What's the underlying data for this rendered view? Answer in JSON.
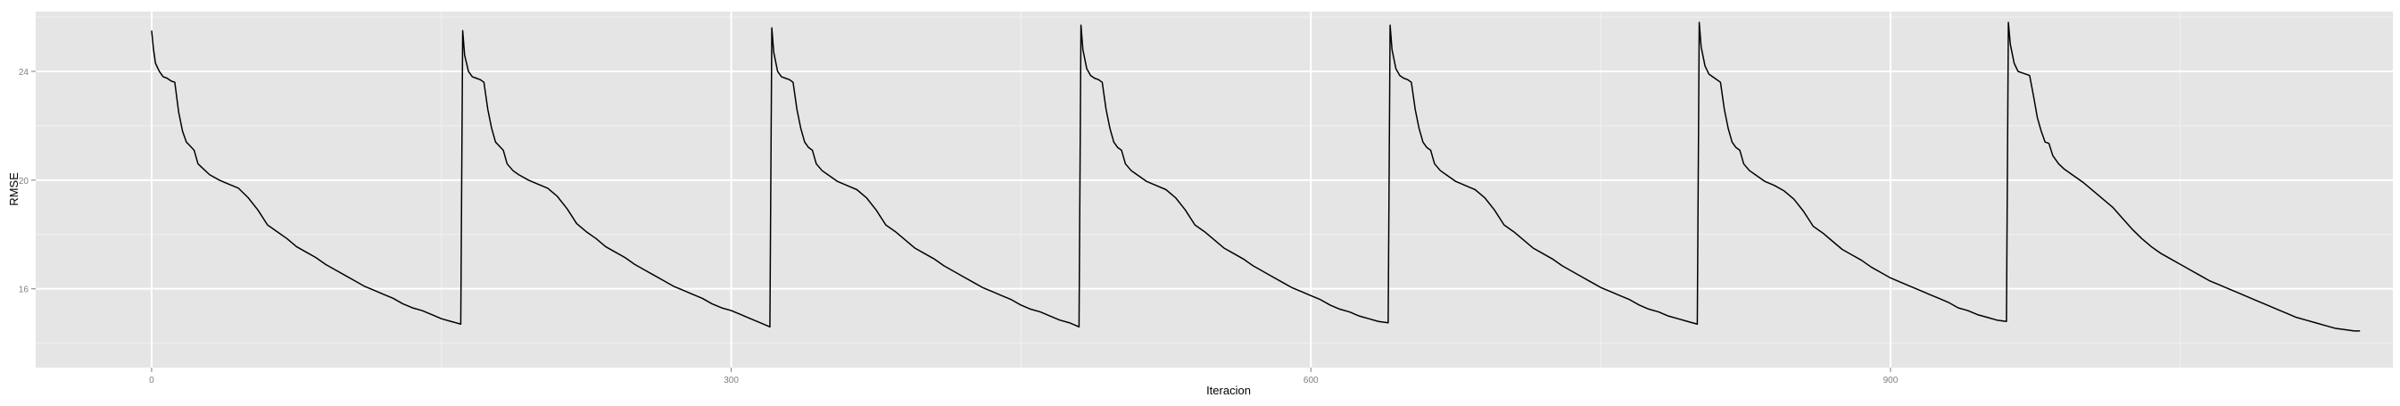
{
  "chart_data": {
    "type": "line",
    "title": "",
    "xlabel": "Iteracion",
    "ylabel": "RMSE",
    "xlim": [
      -60,
      1160
    ],
    "ylim": [
      13.1,
      26.2
    ],
    "xticks": [
      0,
      300,
      600,
      900
    ],
    "yticks": [
      16,
      20,
      24
    ],
    "minor_xticks": [
      150,
      450,
      750,
      1050
    ],
    "minor_yticks": [
      14,
      18,
      22,
      26
    ],
    "grid": true,
    "background": "#E5E5E5",
    "grid_color": "#FFFFFF",
    "line_color": "#000000",
    "restart_peaks": [
      25.5,
      25.5,
      25.6,
      25.7,
      25.7,
      25.8,
      25.8
    ],
    "series": [
      {
        "values": [
          [
            0,
            25.5
          ],
          [
            1,
            24.8
          ],
          [
            2,
            24.3
          ],
          [
            4,
            24.0
          ],
          [
            6,
            23.8
          ],
          [
            8,
            23.75
          ],
          [
            10,
            23.65
          ],
          [
            12,
            23.6
          ],
          [
            14,
            22.5
          ],
          [
            16,
            21.8
          ],
          [
            18,
            21.4
          ],
          [
            20,
            21.25
          ],
          [
            22,
            21.1
          ],
          [
            24,
            20.6
          ],
          [
            27,
            20.4
          ],
          [
            30,
            20.2
          ],
          [
            35,
            20.0
          ],
          [
            40,
            19.85
          ],
          [
            45,
            19.7
          ],
          [
            50,
            19.35
          ],
          [
            55,
            18.9
          ],
          [
            60,
            18.35
          ],
          [
            65,
            18.1
          ],
          [
            70,
            17.85
          ],
          [
            75,
            17.55
          ],
          [
            80,
            17.35
          ],
          [
            85,
            17.15
          ],
          [
            90,
            16.9
          ],
          [
            95,
            16.7
          ],
          [
            100,
            16.5
          ],
          [
            105,
            16.3
          ],
          [
            110,
            16.1
          ],
          [
            115,
            15.95
          ],
          [
            120,
            15.8
          ],
          [
            125,
            15.65
          ],
          [
            130,
            15.45
          ],
          [
            135,
            15.3
          ],
          [
            140,
            15.2
          ],
          [
            145,
            15.05
          ],
          [
            150,
            14.9
          ],
          [
            155,
            14.8
          ],
          [
            160,
            14.7
          ],
          [
            161,
            25.5
          ],
          [
            162,
            24.6
          ],
          [
            164,
            24.0
          ],
          [
            166,
            23.8
          ],
          [
            168,
            23.75
          ],
          [
            170,
            23.7
          ],
          [
            172,
            23.6
          ],
          [
            174,
            22.6
          ],
          [
            176,
            21.9
          ],
          [
            178,
            21.4
          ],
          [
            180,
            21.25
          ],
          [
            182,
            21.1
          ],
          [
            184,
            20.6
          ],
          [
            187,
            20.35
          ],
          [
            190,
            20.2
          ],
          [
            195,
            20.0
          ],
          [
            200,
            19.85
          ],
          [
            205,
            19.7
          ],
          [
            210,
            19.4
          ],
          [
            215,
            18.95
          ],
          [
            220,
            18.4
          ],
          [
            225,
            18.1
          ],
          [
            230,
            17.85
          ],
          [
            235,
            17.55
          ],
          [
            240,
            17.35
          ],
          [
            245,
            17.15
          ],
          [
            250,
            16.9
          ],
          [
            255,
            16.7
          ],
          [
            260,
            16.5
          ],
          [
            265,
            16.3
          ],
          [
            270,
            16.1
          ],
          [
            275,
            15.95
          ],
          [
            280,
            15.8
          ],
          [
            285,
            15.65
          ],
          [
            290,
            15.45
          ],
          [
            295,
            15.3
          ],
          [
            300,
            15.2
          ],
          [
            305,
            15.05
          ],
          [
            310,
            14.9
          ],
          [
            315,
            14.75
          ],
          [
            320,
            14.6
          ],
          [
            321,
            25.6
          ],
          [
            322,
            24.7
          ],
          [
            324,
            24.0
          ],
          [
            326,
            23.8
          ],
          [
            328,
            23.75
          ],
          [
            330,
            23.7
          ],
          [
            332,
            23.6
          ],
          [
            334,
            22.6
          ],
          [
            336,
            21.9
          ],
          [
            338,
            21.4
          ],
          [
            340,
            21.2
          ],
          [
            342,
            21.1
          ],
          [
            344,
            20.6
          ],
          [
            347,
            20.35
          ],
          [
            350,
            20.2
          ],
          [
            355,
            19.95
          ],
          [
            360,
            19.8
          ],
          [
            365,
            19.65
          ],
          [
            370,
            19.35
          ],
          [
            375,
            18.9
          ],
          [
            380,
            18.35
          ],
          [
            385,
            18.1
          ],
          [
            390,
            17.8
          ],
          [
            395,
            17.5
          ],
          [
            400,
            17.3
          ],
          [
            405,
            17.1
          ],
          [
            410,
            16.85
          ],
          [
            415,
            16.65
          ],
          [
            420,
            16.45
          ],
          [
            425,
            16.25
          ],
          [
            430,
            16.05
          ],
          [
            435,
            15.9
          ],
          [
            440,
            15.75
          ],
          [
            445,
            15.6
          ],
          [
            450,
            15.4
          ],
          [
            455,
            15.25
          ],
          [
            460,
            15.15
          ],
          [
            465,
            15.0
          ],
          [
            470,
            14.85
          ],
          [
            475,
            14.75
          ],
          [
            480,
            14.6
          ],
          [
            481,
            25.7
          ],
          [
            482,
            24.8
          ],
          [
            484,
            24.1
          ],
          [
            486,
            23.85
          ],
          [
            488,
            23.75
          ],
          [
            490,
            23.7
          ],
          [
            492,
            23.6
          ],
          [
            494,
            22.6
          ],
          [
            496,
            21.9
          ],
          [
            498,
            21.4
          ],
          [
            500,
            21.2
          ],
          [
            502,
            21.1
          ],
          [
            504,
            20.6
          ],
          [
            507,
            20.35
          ],
          [
            510,
            20.2
          ],
          [
            515,
            19.95
          ],
          [
            520,
            19.8
          ],
          [
            525,
            19.65
          ],
          [
            530,
            19.35
          ],
          [
            535,
            18.9
          ],
          [
            540,
            18.35
          ],
          [
            545,
            18.1
          ],
          [
            550,
            17.8
          ],
          [
            555,
            17.5
          ],
          [
            560,
            17.3
          ],
          [
            565,
            17.1
          ],
          [
            570,
            16.85
          ],
          [
            575,
            16.65
          ],
          [
            580,
            16.45
          ],
          [
            585,
            16.25
          ],
          [
            590,
            16.05
          ],
          [
            595,
            15.9
          ],
          [
            600,
            15.75
          ],
          [
            605,
            15.6
          ],
          [
            610,
            15.4
          ],
          [
            615,
            15.25
          ],
          [
            620,
            15.15
          ],
          [
            625,
            15.0
          ],
          [
            630,
            14.9
          ],
          [
            635,
            14.8
          ],
          [
            640,
            14.75
          ],
          [
            641,
            25.7
          ],
          [
            642,
            24.8
          ],
          [
            644,
            24.1
          ],
          [
            646,
            23.85
          ],
          [
            648,
            23.75
          ],
          [
            650,
            23.7
          ],
          [
            652,
            23.6
          ],
          [
            654,
            22.6
          ],
          [
            656,
            21.9
          ],
          [
            658,
            21.4
          ],
          [
            660,
            21.2
          ],
          [
            662,
            21.1
          ],
          [
            664,
            20.6
          ],
          [
            667,
            20.35
          ],
          [
            670,
            20.2
          ],
          [
            675,
            19.95
          ],
          [
            680,
            19.8
          ],
          [
            685,
            19.65
          ],
          [
            690,
            19.35
          ],
          [
            695,
            18.9
          ],
          [
            700,
            18.35
          ],
          [
            705,
            18.1
          ],
          [
            710,
            17.8
          ],
          [
            715,
            17.5
          ],
          [
            720,
            17.3
          ],
          [
            725,
            17.1
          ],
          [
            730,
            16.85
          ],
          [
            735,
            16.65
          ],
          [
            740,
            16.45
          ],
          [
            745,
            16.25
          ],
          [
            750,
            16.05
          ],
          [
            755,
            15.9
          ],
          [
            760,
            15.75
          ],
          [
            765,
            15.6
          ],
          [
            770,
            15.4
          ],
          [
            775,
            15.25
          ],
          [
            780,
            15.15
          ],
          [
            785,
            15.0
          ],
          [
            790,
            14.9
          ],
          [
            795,
            14.8
          ],
          [
            800,
            14.7
          ],
          [
            801,
            25.8
          ],
          [
            802,
            24.9
          ],
          [
            804,
            24.2
          ],
          [
            806,
            23.9
          ],
          [
            808,
            23.8
          ],
          [
            810,
            23.7
          ],
          [
            812,
            23.6
          ],
          [
            814,
            22.6
          ],
          [
            816,
            21.9
          ],
          [
            818,
            21.4
          ],
          [
            820,
            21.2
          ],
          [
            822,
            21.1
          ],
          [
            824,
            20.6
          ],
          [
            827,
            20.35
          ],
          [
            830,
            20.2
          ],
          [
            835,
            19.95
          ],
          [
            840,
            19.8
          ],
          [
            845,
            19.6
          ],
          [
            850,
            19.3
          ],
          [
            855,
            18.85
          ],
          [
            860,
            18.3
          ],
          [
            865,
            18.05
          ],
          [
            870,
            17.75
          ],
          [
            875,
            17.45
          ],
          [
            880,
            17.25
          ],
          [
            885,
            17.05
          ],
          [
            890,
            16.8
          ],
          [
            895,
            16.6
          ],
          [
            900,
            16.4
          ],
          [
            905,
            16.25
          ],
          [
            910,
            16.1
          ],
          [
            915,
            15.95
          ],
          [
            920,
            15.8
          ],
          [
            925,
            15.65
          ],
          [
            930,
            15.5
          ],
          [
            935,
            15.3
          ],
          [
            940,
            15.2
          ],
          [
            945,
            15.05
          ],
          [
            950,
            14.95
          ],
          [
            955,
            14.85
          ],
          [
            960,
            14.8
          ],
          [
            961,
            25.8
          ],
          [
            962,
            25.0
          ],
          [
            964,
            24.3
          ],
          [
            966,
            24.0
          ],
          [
            968,
            23.95
          ],
          [
            970,
            23.9
          ],
          [
            972,
            23.85
          ],
          [
            974,
            23.1
          ],
          [
            976,
            22.3
          ],
          [
            978,
            21.8
          ],
          [
            980,
            21.4
          ],
          [
            982,
            21.35
          ],
          [
            984,
            20.9
          ],
          [
            987,
            20.6
          ],
          [
            990,
            20.4
          ],
          [
            995,
            20.15
          ],
          [
            1000,
            19.9
          ],
          [
            1005,
            19.6
          ],
          [
            1010,
            19.3
          ],
          [
            1015,
            19.0
          ],
          [
            1020,
            18.6
          ],
          [
            1025,
            18.2
          ],
          [
            1030,
            17.85
          ],
          [
            1035,
            17.55
          ],
          [
            1040,
            17.3
          ],
          [
            1045,
            17.1
          ],
          [
            1050,
            16.9
          ],
          [
            1055,
            16.7
          ],
          [
            1060,
            16.5
          ],
          [
            1065,
            16.3
          ],
          [
            1070,
            16.15
          ],
          [
            1075,
            16.0
          ],
          [
            1080,
            15.85
          ],
          [
            1085,
            15.7
          ],
          [
            1090,
            15.55
          ],
          [
            1095,
            15.4
          ],
          [
            1100,
            15.25
          ],
          [
            1105,
            15.1
          ],
          [
            1110,
            14.95
          ],
          [
            1115,
            14.85
          ],
          [
            1120,
            14.75
          ],
          [
            1125,
            14.65
          ],
          [
            1130,
            14.55
          ],
          [
            1135,
            14.5
          ],
          [
            1140,
            14.45
          ],
          [
            1143,
            14.45
          ]
        ]
      }
    ]
  }
}
